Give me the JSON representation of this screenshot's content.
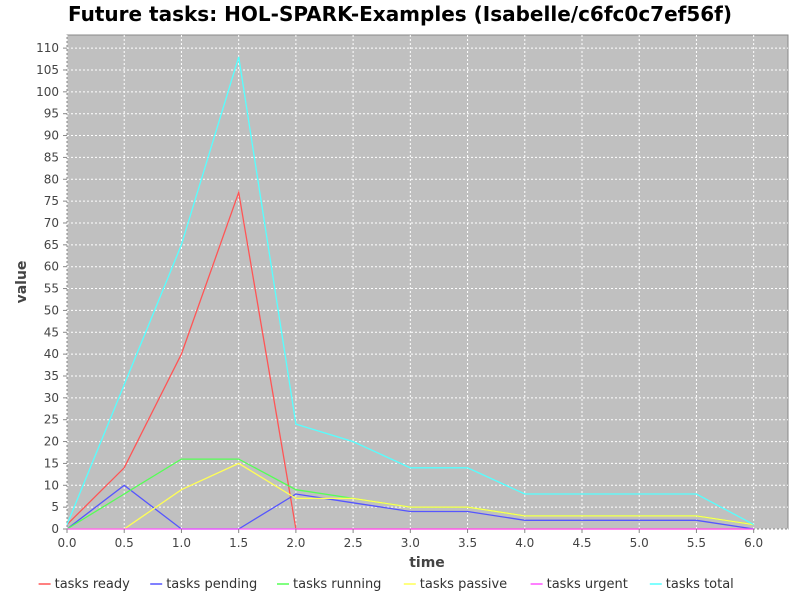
{
  "chart_data": {
    "type": "line",
    "title": "Future tasks: HOL-SPARK-Examples (Isabelle/c6fc0c7ef56f)",
    "xlabel": "time",
    "ylabel": "value",
    "xlim": [
      0.0,
      6.3
    ],
    "ylim": [
      0,
      113
    ],
    "xticks": [
      "0.0",
      "0.5",
      "1.0",
      "1.5",
      "2.0",
      "2.5",
      "3.0",
      "3.5",
      "4.0",
      "4.5",
      "5.0",
      "5.5",
      "6.0"
    ],
    "yticks": [
      "0",
      "5",
      "10",
      "15",
      "20",
      "25",
      "30",
      "35",
      "40",
      "45",
      "50",
      "55",
      "60",
      "65",
      "70",
      "75",
      "80",
      "85",
      "90",
      "95",
      "100",
      "105",
      "110"
    ],
    "grid": true,
    "legend_position": "bottom",
    "background_color": "#c0c0c0",
    "series": [
      {
        "name": "tasks ready",
        "color": "#ff5555",
        "x": [
          0.0,
          0.5,
          1.0,
          1.5,
          2.0,
          2.5,
          3.0,
          3.5,
          4.0,
          4.5,
          5.0,
          5.5,
          6.0
        ],
        "values": [
          1,
          14,
          40,
          77,
          0,
          0,
          0,
          0,
          0,
          0,
          0,
          0,
          0
        ]
      },
      {
        "name": "tasks pending",
        "color": "#5555ff",
        "x": [
          0.0,
          0.5,
          1.0,
          1.5,
          2.0,
          2.5,
          3.0,
          3.5,
          4.0,
          4.5,
          5.0,
          5.5,
          6.0
        ],
        "values": [
          0,
          10,
          0,
          0,
          8,
          6,
          4,
          4,
          2,
          2,
          2,
          2,
          0
        ]
      },
      {
        "name": "tasks running",
        "color": "#55ff55",
        "x": [
          0.0,
          0.5,
          1.0,
          1.5,
          2.0,
          2.5,
          3.0,
          3.5,
          4.0,
          4.5,
          5.0,
          5.5,
          6.0
        ],
        "values": [
          0,
          8,
          16,
          16,
          9,
          7,
          5,
          5,
          3,
          3,
          3,
          3,
          1
        ]
      },
      {
        "name": "tasks passive",
        "color": "#ffff55",
        "x": [
          0.0,
          0.5,
          1.0,
          1.5,
          2.0,
          2.5,
          3.0,
          3.5,
          4.0,
          4.5,
          5.0,
          5.5,
          6.0
        ],
        "values": [
          0,
          0,
          9,
          15,
          7,
          7,
          5,
          5,
          3,
          3,
          3,
          3,
          1
        ]
      },
      {
        "name": "tasks urgent",
        "color": "#ff55ff",
        "x": [
          0.0,
          0.5,
          1.0,
          1.5,
          2.0,
          2.5,
          3.0,
          3.5,
          4.0,
          4.5,
          5.0,
          5.5,
          6.0
        ],
        "values": [
          0,
          0,
          0,
          0,
          0,
          0,
          0,
          0,
          0,
          0,
          0,
          0,
          0
        ]
      },
      {
        "name": "tasks total",
        "color": "#55ffff",
        "x": [
          0.0,
          0.5,
          1.0,
          1.5,
          2.0,
          2.5,
          3.0,
          3.5,
          4.0,
          4.5,
          5.0,
          5.5,
          6.0
        ],
        "values": [
          1,
          33,
          65,
          108,
          24,
          20,
          14,
          14,
          8,
          8,
          8,
          8,
          1
        ]
      }
    ]
  }
}
